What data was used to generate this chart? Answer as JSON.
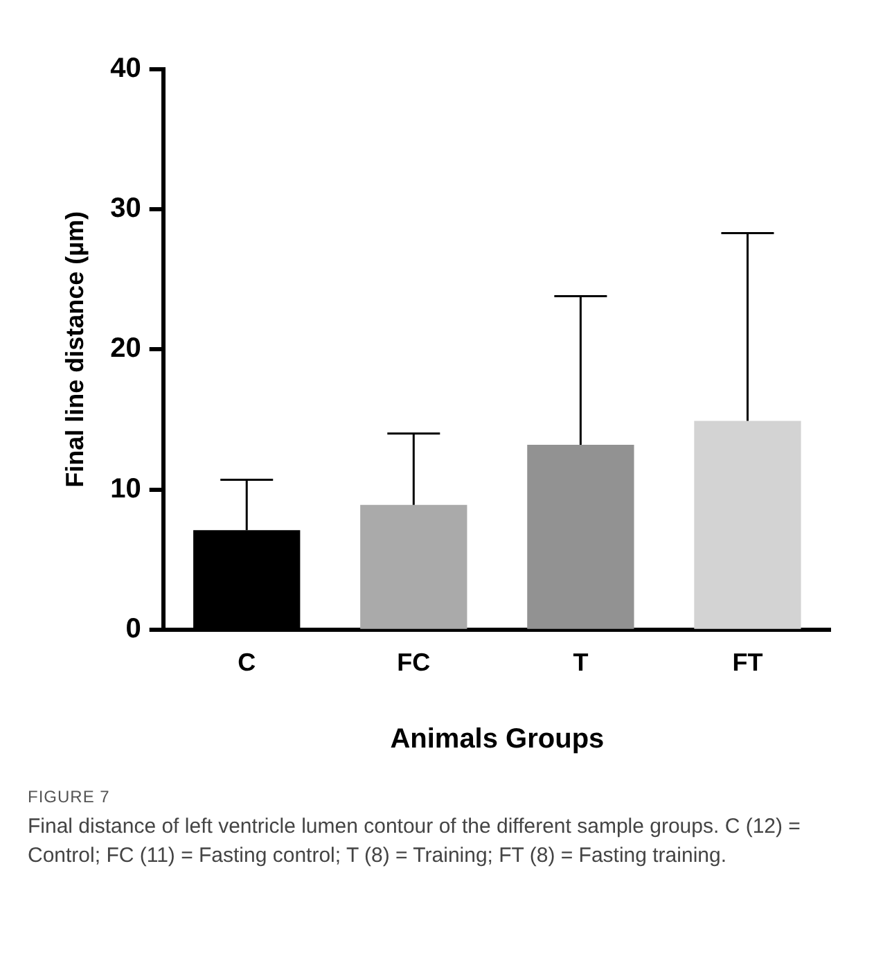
{
  "chart_data": {
    "type": "bar",
    "xlabel": "Animals Groups",
    "ylabel": "Final line distance (µm)",
    "categories": [
      "C",
      "FC",
      "T",
      "FT"
    ],
    "values": [
      7.1,
      8.9,
      13.2,
      14.9
    ],
    "colors": [
      "#000000",
      "#aaaaaa",
      "#929292",
      "#d3d3d3"
    ],
    "errors": [
      [
        7.1,
        10.7
      ],
      [
        8.9,
        14.0
      ],
      [
        13.2,
        23.8
      ],
      [
        14.9,
        28.3
      ]
    ],
    "ylim": [
      0,
      40
    ],
    "yticks": [
      0,
      10,
      20,
      30,
      40
    ],
    "grid": false,
    "legend": false,
    "annotations": [
      "FIGURE 7",
      "Final distance of left ventricle lumen contour of the different sample groups. C (12) = Control; FC (11) = Fasting control; T (8) = Training; FT (8) = Fasting training."
    ]
  }
}
